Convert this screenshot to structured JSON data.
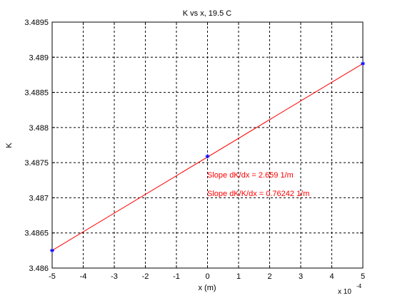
{
  "chart_data": {
    "type": "line",
    "title": "K vs x, 19.5 C",
    "xlabel": "x (m)",
    "ylabel": "K",
    "x_multiplier": "x 10",
    "x_multiplier_exponent": "-4",
    "xlim": [
      -5,
      5
    ],
    "ylim": [
      3.486,
      3.4895
    ],
    "x_ticks": [
      -5,
      -4,
      -3,
      -2,
      -1,
      0,
      1,
      2,
      3,
      4,
      5
    ],
    "x_tick_labels": [
      "-5",
      "-4",
      "-3",
      "-2",
      "-1",
      "0",
      "1",
      "2",
      "3",
      "4",
      "5"
    ],
    "y_ticks": [
      3.486,
      3.4865,
      3.487,
      3.4875,
      3.488,
      3.4885,
      3.489,
      3.4895
    ],
    "y_tick_labels": [
      "3.486",
      "3.4865",
      "3.487",
      "3.4875",
      "3.488",
      "3.4885",
      "3.489",
      "3.4895"
    ],
    "grid": true,
    "series": [
      {
        "kind": "fit-line",
        "color": "#ff0000",
        "x": [
          -5,
          5
        ],
        "y": [
          3.48625,
          3.48891
        ]
      },
      {
        "kind": "markers",
        "marker": "asterisk",
        "color": "#0000ff",
        "x": [
          -5,
          0,
          5
        ],
        "y": [
          3.48625,
          3.48759,
          3.48891
        ]
      }
    ],
    "annotations": [
      {
        "text": "Slope dK/dx = 2.659 1/m",
        "color": "#ff0000"
      },
      {
        "text": "Slope dK/K/dx = 0.76242 1/m",
        "color": "#ff0000"
      }
    ]
  }
}
